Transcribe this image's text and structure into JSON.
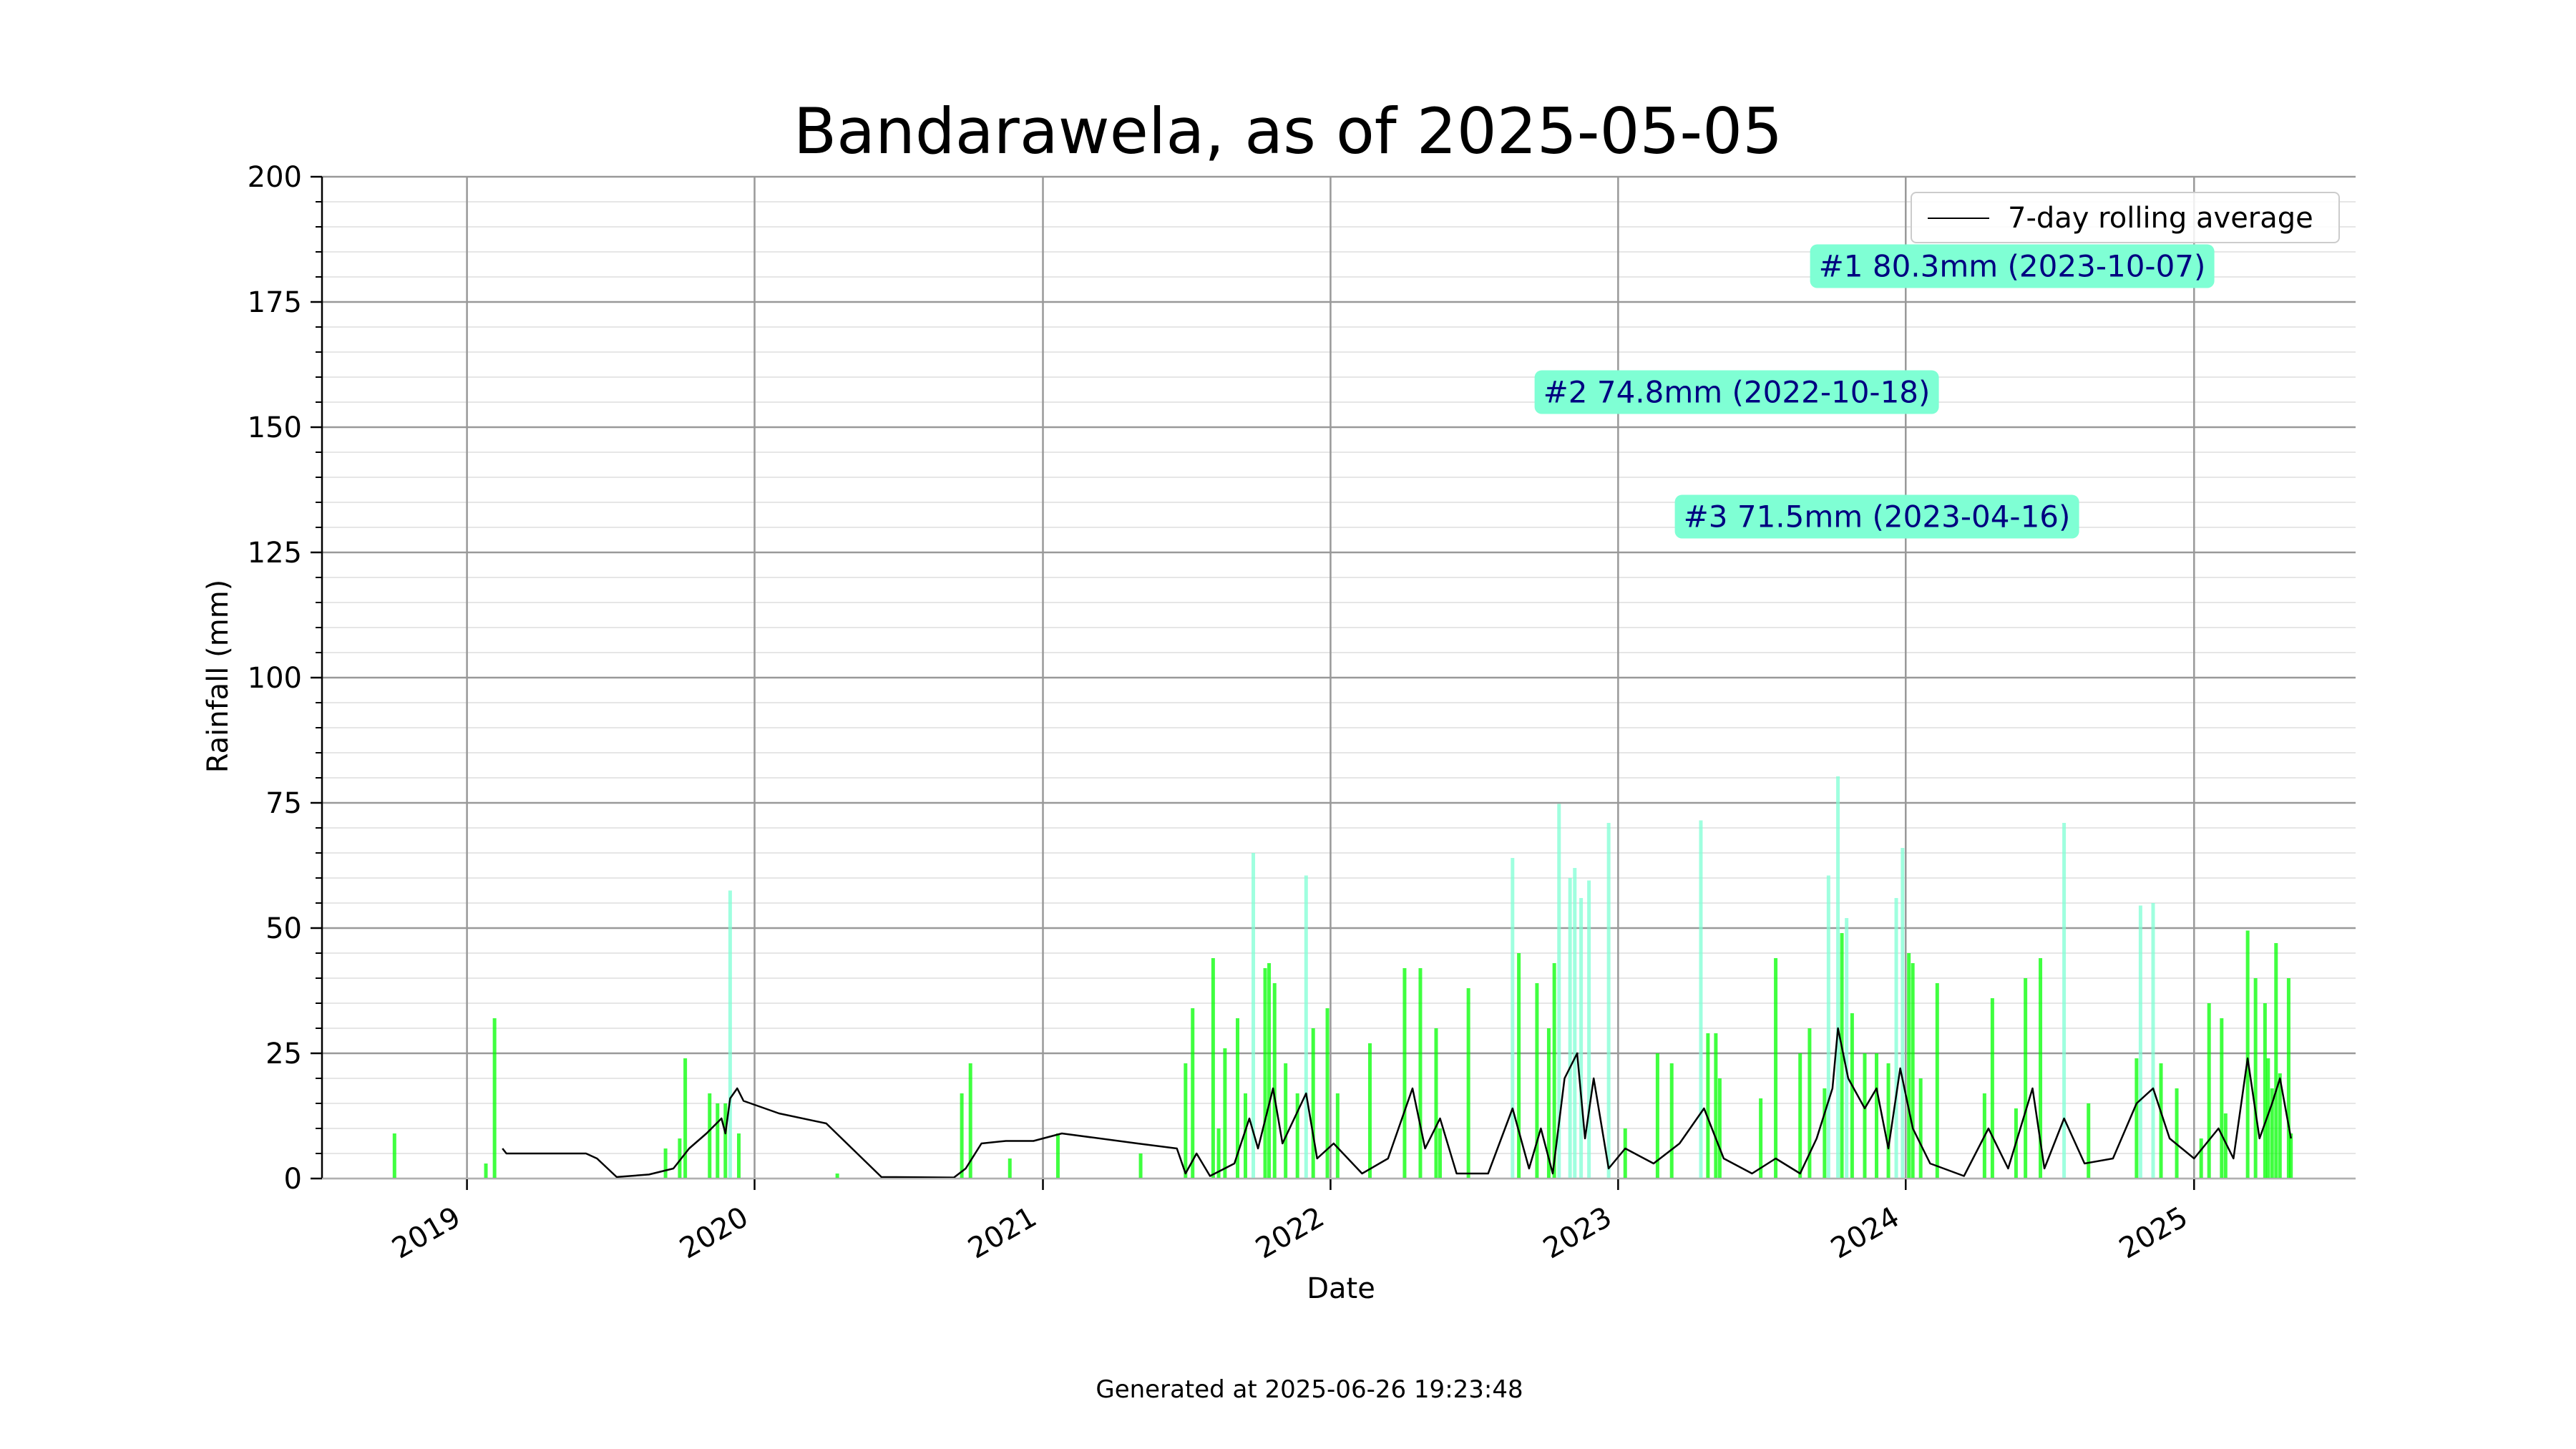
{
  "title": "Bandarawela, as of 2025-05-05",
  "footer": "Generated at 2025-06-26 19:23:48",
  "colors": {
    "bar": "#00ff00",
    "bar_tall": "#7fffd4",
    "line": "#000000",
    "annotation_bg": "#7fffd4",
    "annotation_text": "#000080",
    "grid_major": "#999999",
    "grid_minor": "#e6e6e6"
  },
  "annotations": [
    {
      "label": "#1 80.3mm (2023-10-07)"
    },
    {
      "label": "#2 74.8mm (2022-10-18)"
    },
    {
      "label": "#3 71.5mm (2023-04-16)"
    }
  ],
  "chart_data": {
    "type": "bar",
    "xlabel": "Date",
    "ylabel": "Rainfall (mm)",
    "xlim": [
      "2018-07-01",
      "2025-07-25"
    ],
    "ylim": [
      0,
      200
    ],
    "yticks": [
      0,
      25,
      50,
      75,
      100,
      125,
      150,
      175,
      200
    ],
    "xticks": [
      "2019",
      "2020",
      "2021",
      "2022",
      "2023",
      "2024",
      "2025"
    ],
    "grid": true,
    "legend": {
      "placement": "top-right",
      "entries": [
        "7-day rolling average"
      ]
    },
    "series": [
      {
        "type": "bar",
        "points": [
          [
            "2018-10-01",
            9
          ],
          [
            "2019-01-25",
            3
          ],
          [
            "2019-02-05",
            32
          ],
          [
            "2019-09-10",
            6
          ],
          [
            "2019-09-28",
            8
          ],
          [
            "2019-10-05",
            24
          ],
          [
            "2019-11-05",
            17
          ],
          [
            "2019-11-15",
            15
          ],
          [
            "2019-11-25",
            15
          ],
          [
            "2019-12-01",
            57.5
          ],
          [
            "2019-12-12",
            9
          ],
          [
            "2020-04-15",
            1
          ],
          [
            "2020-09-20",
            17
          ],
          [
            "2020-10-01",
            23
          ],
          [
            "2020-11-20",
            4
          ],
          [
            "2021-01-20",
            9
          ],
          [
            "2021-05-05",
            5
          ],
          [
            "2021-07-01",
            23
          ],
          [
            "2021-07-10",
            34
          ],
          [
            "2021-08-05",
            44
          ],
          [
            "2021-08-12",
            10
          ],
          [
            "2021-08-20",
            26
          ],
          [
            "2021-09-05",
            32
          ],
          [
            "2021-09-15",
            17
          ],
          [
            "2021-09-25",
            65
          ],
          [
            "2021-10-10",
            42
          ],
          [
            "2021-10-15",
            43
          ],
          [
            "2021-10-22",
            39
          ],
          [
            "2021-11-05",
            23
          ],
          [
            "2021-11-20",
            17
          ],
          [
            "2021-12-01",
            60.5
          ],
          [
            "2021-12-10",
            30
          ],
          [
            "2021-12-28",
            34
          ],
          [
            "2022-01-10",
            17
          ],
          [
            "2022-02-20",
            27
          ],
          [
            "2022-04-05",
            42
          ],
          [
            "2022-04-25",
            42
          ],
          [
            "2022-05-15",
            30
          ],
          [
            "2022-05-20",
            10
          ],
          [
            "2022-06-25",
            38
          ],
          [
            "2022-08-20",
            64
          ],
          [
            "2022-08-28",
            45
          ],
          [
            "2022-09-20",
            39
          ],
          [
            "2022-10-05",
            30
          ],
          [
            "2022-10-12",
            43
          ],
          [
            "2022-10-18",
            74.8
          ],
          [
            "2022-11-01",
            60
          ],
          [
            "2022-11-07",
            62
          ],
          [
            "2022-11-15",
            56
          ],
          [
            "2022-11-25",
            59.5
          ],
          [
            "2022-12-20",
            71
          ],
          [
            "2023-01-10",
            10
          ],
          [
            "2023-02-20",
            25
          ],
          [
            "2023-03-10",
            23
          ],
          [
            "2023-04-16",
            71.5
          ],
          [
            "2023-04-25",
            29
          ],
          [
            "2023-05-05",
            29
          ],
          [
            "2023-05-10",
            20
          ],
          [
            "2023-07-01",
            16
          ],
          [
            "2023-07-20",
            44
          ],
          [
            "2023-08-20",
            25
          ],
          [
            "2023-09-01",
            30
          ],
          [
            "2023-09-20",
            18
          ],
          [
            "2023-09-25",
            60.5
          ],
          [
            "2023-10-07",
            80.3
          ],
          [
            "2023-10-12",
            49
          ],
          [
            "2023-10-18",
            52
          ],
          [
            "2023-10-25",
            33
          ],
          [
            "2023-11-10",
            25
          ],
          [
            "2023-11-25",
            25
          ],
          [
            "2023-12-10",
            23
          ],
          [
            "2023-12-20",
            56
          ],
          [
            "2023-12-28",
            66
          ],
          [
            "2024-01-05",
            45
          ],
          [
            "2024-01-10",
            43
          ],
          [
            "2024-01-20",
            20
          ],
          [
            "2024-02-10",
            39
          ],
          [
            "2024-04-10",
            17
          ],
          [
            "2024-04-20",
            36
          ],
          [
            "2024-05-20",
            14
          ],
          [
            "2024-06-01",
            40
          ],
          [
            "2024-06-20",
            44
          ],
          [
            "2024-07-20",
            71
          ],
          [
            "2024-08-20",
            15
          ],
          [
            "2024-10-20",
            24
          ],
          [
            "2024-10-25",
            54.5
          ],
          [
            "2024-11-10",
            55
          ],
          [
            "2024-11-20",
            23
          ],
          [
            "2024-12-10",
            18
          ],
          [
            "2025-01-10",
            8
          ],
          [
            "2025-01-20",
            35
          ],
          [
            "2025-02-05",
            32
          ],
          [
            "2025-02-10",
            13
          ],
          [
            "2025-03-10",
            49.5
          ],
          [
            "2025-03-20",
            40
          ],
          [
            "2025-04-01",
            35
          ],
          [
            "2025-04-05",
            24
          ],
          [
            "2025-04-10",
            18
          ],
          [
            "2025-04-15",
            47
          ],
          [
            "2025-04-20",
            21
          ],
          [
            "2025-05-01",
            40
          ],
          [
            "2025-05-04",
            9
          ]
        ]
      },
      {
        "name": "7-day rolling average",
        "type": "line",
        "points": [
          [
            "2019-02-15",
            6
          ],
          [
            "2019-02-20",
            5
          ],
          [
            "2019-06-01",
            5
          ],
          [
            "2019-06-15",
            4
          ],
          [
            "2019-07-10",
            0.3
          ],
          [
            "2019-08-20",
            0.8
          ],
          [
            "2019-09-20",
            2
          ],
          [
            "2019-10-10",
            6
          ],
          [
            "2019-11-01",
            9
          ],
          [
            "2019-11-20",
            12
          ],
          [
            "2019-11-25",
            9
          ],
          [
            "2019-12-01",
            16
          ],
          [
            "2019-12-10",
            18
          ],
          [
            "2019-12-18",
            15.5
          ],
          [
            "2020-02-01",
            13
          ],
          [
            "2020-04-01",
            11
          ],
          [
            "2020-06-10",
            0.3
          ],
          [
            "2020-09-10",
            0.2
          ],
          [
            "2020-09-25",
            2
          ],
          [
            "2020-10-15",
            7
          ],
          [
            "2020-11-15",
            7.5
          ],
          [
            "2020-12-20",
            7.5
          ],
          [
            "2021-01-25",
            9
          ],
          [
            "2021-05-01",
            7
          ],
          [
            "2021-06-20",
            6
          ],
          [
            "2021-07-01",
            1
          ],
          [
            "2021-07-15",
            5
          ],
          [
            "2021-08-01",
            0.5
          ],
          [
            "2021-09-01",
            3
          ],
          [
            "2021-09-20",
            12
          ],
          [
            "2021-10-01",
            6
          ],
          [
            "2021-10-20",
            18
          ],
          [
            "2021-11-01",
            7
          ],
          [
            "2021-12-01",
            17
          ],
          [
            "2021-12-15",
            4
          ],
          [
            "2022-01-05",
            7
          ],
          [
            "2022-02-10",
            1
          ],
          [
            "2022-03-15",
            4
          ],
          [
            "2022-04-15",
            18
          ],
          [
            "2022-05-01",
            6
          ],
          [
            "2022-05-20",
            12
          ],
          [
            "2022-06-10",
            1
          ],
          [
            "2022-07-20",
            1
          ],
          [
            "2022-08-20",
            14
          ],
          [
            "2022-09-10",
            2
          ],
          [
            "2022-09-25",
            10
          ],
          [
            "2022-10-10",
            1
          ],
          [
            "2022-10-25",
            20
          ],
          [
            "2022-11-10",
            25
          ],
          [
            "2022-11-20",
            8
          ],
          [
            "2022-12-01",
            20
          ],
          [
            "2022-12-20",
            2
          ],
          [
            "2023-01-10",
            6
          ],
          [
            "2023-02-15",
            3
          ],
          [
            "2023-03-20",
            7
          ],
          [
            "2023-04-20",
            14
          ],
          [
            "2023-05-15",
            4
          ],
          [
            "2023-06-20",
            1
          ],
          [
            "2023-07-20",
            4
          ],
          [
            "2023-08-20",
            1
          ],
          [
            "2023-09-10",
            8
          ],
          [
            "2023-09-30",
            18
          ],
          [
            "2023-10-07",
            30
          ],
          [
            "2023-10-20",
            20
          ],
          [
            "2023-11-10",
            14
          ],
          [
            "2023-11-25",
            18
          ],
          [
            "2023-12-10",
            6
          ],
          [
            "2023-12-25",
            22
          ],
          [
            "2024-01-10",
            10
          ],
          [
            "2024-02-01",
            3
          ],
          [
            "2024-03-15",
            0.5
          ],
          [
            "2024-04-15",
            10
          ],
          [
            "2024-05-10",
            2
          ],
          [
            "2024-06-10",
            18
          ],
          [
            "2024-06-25",
            2
          ],
          [
            "2024-07-20",
            12
          ],
          [
            "2024-08-15",
            3
          ],
          [
            "2024-09-20",
            4
          ],
          [
            "2024-10-20",
            15
          ],
          [
            "2024-11-10",
            18
          ],
          [
            "2024-12-01",
            8
          ],
          [
            "2025-01-01",
            4
          ],
          [
            "2025-02-01",
            10
          ],
          [
            "2025-02-20",
            4
          ],
          [
            "2025-03-10",
            24
          ],
          [
            "2025-03-25",
            8
          ],
          [
            "2025-04-10",
            15
          ],
          [
            "2025-04-20",
            20
          ],
          [
            "2025-05-04",
            8
          ]
        ]
      }
    ]
  }
}
